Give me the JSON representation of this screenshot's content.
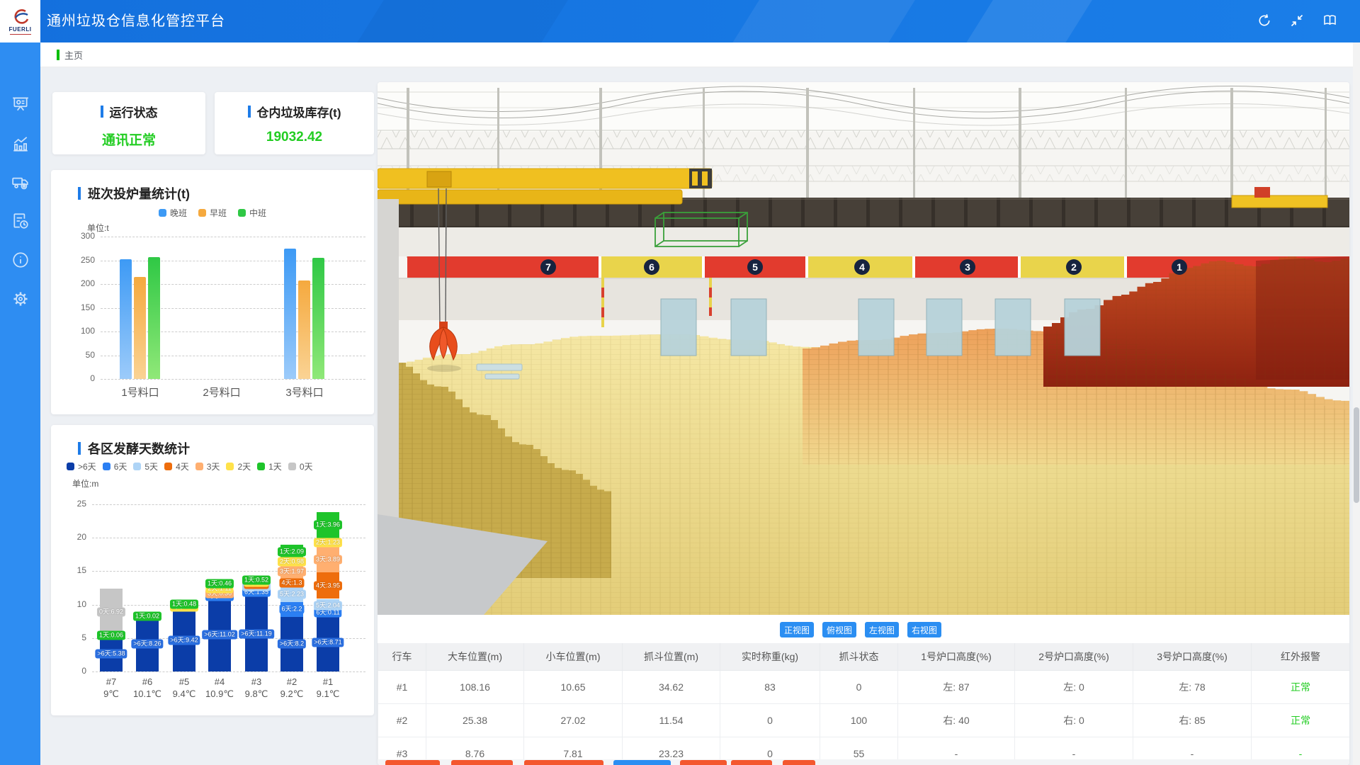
{
  "app": {
    "title": "通州垃圾仓信息化管控平台",
    "logo_text": "FUERLI"
  },
  "header": {
    "icons": [
      "refresh-icon",
      "fullscreen-icon",
      "manual-book-icon"
    ]
  },
  "sidebar": {
    "items": [
      {
        "icon": "dashboard-screen-icon"
      },
      {
        "icon": "statistics-chart-icon"
      },
      {
        "icon": "truck-icon"
      },
      {
        "icon": "report-clock-icon"
      },
      {
        "icon": "info-icon"
      },
      {
        "icon": "settings-gear-icon"
      }
    ]
  },
  "breadcrumb": {
    "label": "主页"
  },
  "status_cards": [
    {
      "title": "运行状态",
      "value": "通讯正常"
    },
    {
      "title": "仓内垃圾库存(t)",
      "value": "19032.42"
    }
  ],
  "colors": {
    "accent": "#1E7CE8",
    "green": "#23CD23",
    "header_blue": "#1677E0",
    "sidebar_blue": "#2E8DF2",
    "button_blue": "#2B8EF2",
    "button_orange": "#F4572E"
  },
  "chart_data": [
    {
      "type": "bar",
      "title": "班次投炉量统计(t)",
      "unit_label": "单位:t",
      "categories": [
        "1号料口",
        "2号料口",
        "3号料口"
      ],
      "series": [
        {
          "name": "晚班",
          "color": "#3D9AF5",
          "color_light": "#9CCBFA",
          "values": [
            252,
            0,
            274
          ]
        },
        {
          "name": "早班",
          "color": "#F5A93E",
          "color_light": "#FAD394",
          "values": [
            215,
            0,
            207
          ]
        },
        {
          "name": "中班",
          "color": "#2FC845",
          "color_light": "#90E878",
          "values": [
            256,
            0,
            255
          ]
        }
      ],
      "ylim": [
        0,
        300
      ],
      "yticks": [
        0,
        50,
        100,
        150,
        200,
        250,
        300
      ],
      "grid": "dashed horizontal",
      "legend_position": "top"
    },
    {
      "type": "stacked-bar",
      "title": "各区发酵天数统计",
      "unit_label": "单位:m",
      "ylim": [
        0,
        25
      ],
      "yticks": [
        0,
        5,
        10,
        15,
        20,
        25
      ],
      "grid": "dashed horizontal",
      "legend": [
        {
          "label": ">6天",
          "color": "#0B3DA8"
        },
        {
          "label": "6天",
          "color": "#2B7FF3"
        },
        {
          "label": "5天",
          "color": "#AED4F6"
        },
        {
          "label": "4天",
          "color": "#EE6D0C"
        },
        {
          "label": "3天",
          "color": "#FFAF70"
        },
        {
          "label": "2天",
          "color": "#FFE24A"
        },
        {
          "label": "1天",
          "color": "#1EC42A"
        },
        {
          "label": "0天",
          "color": "#C6C6C6"
        }
      ],
      "categories": [
        "#7",
        "#6",
        "#5",
        "#4",
        "#3",
        "#2",
        "#1"
      ],
      "category_temps": [
        "9℃",
        "10.1℃",
        "9.4℃",
        "10.9℃",
        "9.8℃",
        "9.2℃",
        "9.1℃"
      ],
      "bars": [
        [
          {
            "day": ">6天",
            "value": 5.38
          },
          {
            "day": "1天",
            "value": 0.06
          },
          {
            "day": "0天",
            "value": 6.92
          }
        ],
        [
          {
            "day": ">6天",
            "value": 8.26
          },
          {
            "day": "1天",
            "value": 0.02
          }
        ],
        [
          {
            "day": ">6天",
            "value": 9.42
          },
          {
            "day": "2天",
            "value": 0.45
          },
          {
            "day": "1天",
            "value": 0.48
          }
        ],
        [
          {
            "day": ">6天",
            "value": 11.02
          },
          {
            "day": "6天",
            "value": 0.45
          },
          {
            "day": "3天",
            "value": 0.36
          },
          {
            "day": "2天",
            "value": 1.11
          },
          {
            "day": "1天",
            "value": 0.46
          }
        ],
        [
          {
            "day": ">6天",
            "value": 11.19
          },
          {
            "day": "6天",
            "value": 1.35
          },
          {
            "day": "5天",
            "value": 0.36
          },
          {
            "day": "4天",
            "value": 0.3
          },
          {
            "day": "2天",
            "value": 0.2
          },
          {
            "day": "1天",
            "value": 0.52
          }
        ],
        [
          {
            "day": ">6天",
            "value": 8.2
          },
          {
            "day": "6天",
            "value": 2.2
          },
          {
            "day": "5天",
            "value": 2.23
          },
          {
            "day": "4天",
            "value": 1.3
          },
          {
            "day": "3天",
            "value": 1.97
          },
          {
            "day": "2天",
            "value": 0.98
          },
          {
            "day": "1天",
            "value": 2.09
          }
        ],
        [
          {
            "day": ">6天",
            "value": 8.71
          },
          {
            "day": "6天",
            "value": 0.11
          },
          {
            "day": "5天",
            "value": 2.04
          },
          {
            "day": "4天",
            "value": 3.95
          },
          {
            "day": "3天",
            "value": 3.89
          },
          {
            "day": "2天",
            "value": 1.23
          },
          {
            "day": "1天",
            "value": 3.96
          }
        ]
      ]
    }
  ],
  "view_buttons": [
    "正视图",
    "俯视图",
    "左视图",
    "右视图"
  ],
  "scene": {
    "wall_numbers": [
      "7",
      "6",
      "5",
      "4",
      "3",
      "2",
      "1"
    ]
  },
  "crane_table": {
    "headers": [
      "行车",
      "大车位置(m)",
      "小车位置(m)",
      "抓斗位置(m)",
      "实时称重(kg)",
      "抓斗状态",
      "1号炉口高度(%)",
      "2号炉口高度(%)",
      "3号炉口高度(%)",
      "红外报警"
    ],
    "rows": [
      [
        "#1",
        "108.16",
        "10.65",
        "34.62",
        "83",
        "0",
        "左: 87",
        "左: 0",
        "左: 78",
        "正常"
      ],
      [
        "#2",
        "25.38",
        "27.02",
        "11.54",
        "0",
        "100",
        "右: 40",
        "右: 0",
        "右: 85",
        "正常"
      ],
      [
        "#3",
        "8.76",
        "7.81",
        "23.23",
        "0",
        "55",
        "-",
        "-",
        "-",
        "-"
      ]
    ]
  },
  "partial_buttons": [
    "#F4572E",
    "#F4572E",
    "#F4572E",
    "#2B8EF2",
    "#F4572E",
    "#F4572E",
    "#F4572E"
  ]
}
